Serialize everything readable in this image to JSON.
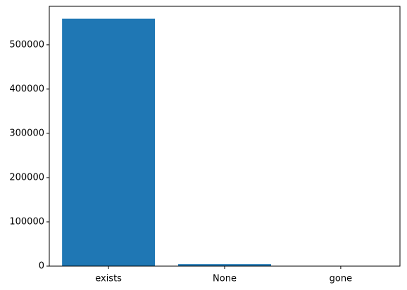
{
  "chart_data": {
    "type": "bar",
    "categories": [
      "exists",
      "None",
      "gone"
    ],
    "values": [
      559000,
      4500,
      600
    ],
    "title": "",
    "xlabel": "",
    "ylabel": "",
    "ylim": [
      0,
      587000
    ],
    "yticks": [
      0,
      100000,
      200000,
      300000,
      400000,
      500000
    ],
    "grid": false,
    "legend": "none",
    "bar_color": "#1f77b4"
  }
}
